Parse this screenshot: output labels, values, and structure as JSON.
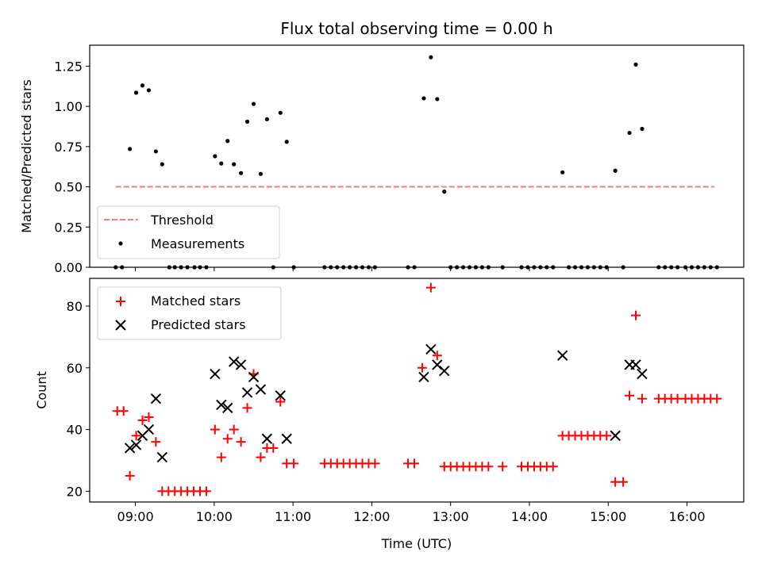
{
  "chart_data": [
    {
      "type": "scatter",
      "title": "Flux total observing time = 0.00 h",
      "xlabel": "",
      "ylabel": "Matched/Predicted stars",
      "xlim": [
        8.42,
        16.72
      ],
      "ylim": [
        0.0,
        1.38
      ],
      "yticks": [
        "0.00",
        "0.25",
        "0.50",
        "0.75",
        "1.00",
        "1.25"
      ],
      "grid": false,
      "legend_position": "lower-left",
      "series": [
        {
          "name": "Threshold",
          "style": "dashed-line",
          "color": "#f08080",
          "x": [
            8.75,
            16.35
          ],
          "y": [
            0.5,
            0.5
          ]
        },
        {
          "name": "Measurements",
          "style": "dot",
          "color": "#000000",
          "points": [
            [
              8.75,
              0.0
            ],
            [
              8.83,
              0.0
            ],
            [
              8.93,
              0.735
            ],
            [
              9.01,
              1.085
            ],
            [
              9.09,
              1.13
            ],
            [
              9.17,
              1.1
            ],
            [
              9.26,
              0.72
            ],
            [
              9.34,
              0.64
            ],
            [
              9.43,
              0.0
            ],
            [
              9.5,
              0.0
            ],
            [
              9.58,
              0.0
            ],
            [
              9.66,
              0.0
            ],
            [
              9.75,
              0.0
            ],
            [
              9.82,
              0.0
            ],
            [
              9.9,
              0.0
            ],
            [
              10.01,
              0.69
            ],
            [
              10.09,
              0.645
            ],
            [
              10.17,
              0.785
            ],
            [
              10.25,
              0.64
            ],
            [
              10.34,
              0.585
            ],
            [
              10.42,
              0.905
            ],
            [
              10.5,
              1.015
            ],
            [
              10.59,
              0.58
            ],
            [
              10.67,
              0.92
            ],
            [
              10.75,
              0.0
            ],
            [
              10.84,
              0.96
            ],
            [
              10.92,
              0.78
            ],
            [
              11.01,
              0.0
            ],
            [
              11.4,
              0.0
            ],
            [
              11.48,
              0.0
            ],
            [
              11.56,
              0.0
            ],
            [
              11.64,
              0.0
            ],
            [
              11.72,
              0.0
            ],
            [
              11.8,
              0.0
            ],
            [
              11.88,
              0.0
            ],
            [
              11.96,
              0.0
            ],
            [
              12.04,
              0.0
            ],
            [
              12.46,
              0.0
            ],
            [
              12.54,
              0.0
            ],
            [
              12.66,
              1.05
            ],
            [
              12.75,
              1.305
            ],
            [
              12.83,
              1.045
            ],
            [
              12.92,
              0.47
            ],
            [
              13.0,
              0.0
            ],
            [
              13.08,
              0.0
            ],
            [
              13.16,
              0.0
            ],
            [
              13.24,
              0.0
            ],
            [
              13.32,
              0.0
            ],
            [
              13.4,
              0.0
            ],
            [
              13.48,
              0.0
            ],
            [
              13.66,
              0.0
            ],
            [
              13.9,
              0.0
            ],
            [
              13.98,
              0.0
            ],
            [
              14.06,
              0.0
            ],
            [
              14.14,
              0.0
            ],
            [
              14.22,
              0.0
            ],
            [
              14.3,
              0.0
            ],
            [
              14.42,
              0.59
            ],
            [
              14.5,
              0.0
            ],
            [
              14.58,
              0.0
            ],
            [
              14.66,
              0.0
            ],
            [
              14.74,
              0.0
            ],
            [
              14.82,
              0.0
            ],
            [
              14.9,
              0.0
            ],
            [
              14.98,
              0.0
            ],
            [
              15.09,
              0.6
            ],
            [
              15.19,
              0.0
            ],
            [
              15.27,
              0.835
            ],
            [
              15.35,
              1.26
            ],
            [
              15.43,
              0.86
            ],
            [
              15.64,
              0.0
            ],
            [
              15.72,
              0.0
            ],
            [
              15.8,
              0.0
            ],
            [
              15.88,
              0.0
            ],
            [
              15.98,
              0.0
            ],
            [
              16.06,
              0.0
            ],
            [
              16.14,
              0.0
            ],
            [
              16.22,
              0.0
            ],
            [
              16.3,
              0.0
            ],
            [
              16.38,
              0.0
            ]
          ]
        }
      ]
    },
    {
      "type": "scatter",
      "title": "",
      "xlabel": "Time (UTC)",
      "ylabel": "Count",
      "xlim": [
        8.42,
        16.72
      ],
      "ylim": [
        16.5,
        89.0
      ],
      "xticks": [
        {
          "value": 9,
          "label": "09:00"
        },
        {
          "value": 10,
          "label": "10:00"
        },
        {
          "value": 11,
          "label": "11:00"
        },
        {
          "value": 12,
          "label": "12:00"
        },
        {
          "value": 13,
          "label": "13:00"
        },
        {
          "value": 14,
          "label": "14:00"
        },
        {
          "value": 15,
          "label": "15:00"
        },
        {
          "value": 16,
          "label": "16:00"
        }
      ],
      "yticks": [
        "20",
        "40",
        "60",
        "80"
      ],
      "grid": false,
      "legend_position": "top-left",
      "series": [
        {
          "name": "Matched stars",
          "marker": "plus",
          "color": "#ff0000",
          "points": [
            [
              8.77,
              46
            ],
            [
              8.85,
              46
            ],
            [
              8.93,
              25
            ],
            [
              9.01,
              38
            ],
            [
              9.09,
              43
            ],
            [
              9.17,
              44
            ],
            [
              9.26,
              36
            ],
            [
              9.34,
              20
            ],
            [
              9.42,
              20
            ],
            [
              9.5,
              20
            ],
            [
              9.58,
              20
            ],
            [
              9.66,
              20
            ],
            [
              9.74,
              20
            ],
            [
              9.82,
              20
            ],
            [
              9.9,
              20
            ],
            [
              10.01,
              40
            ],
            [
              10.09,
              31
            ],
            [
              10.17,
              37
            ],
            [
              10.25,
              40
            ],
            [
              10.34,
              36
            ],
            [
              10.42,
              47
            ],
            [
              10.5,
              58
            ],
            [
              10.59,
              31
            ],
            [
              10.67,
              34
            ],
            [
              10.75,
              34
            ],
            [
              10.84,
              49
            ],
            [
              10.92,
              29
            ],
            [
              11.01,
              29
            ],
            [
              11.4,
              29
            ],
            [
              11.48,
              29
            ],
            [
              11.56,
              29
            ],
            [
              11.64,
              29
            ],
            [
              11.72,
              29
            ],
            [
              11.8,
              29
            ],
            [
              11.88,
              29
            ],
            [
              11.96,
              29
            ],
            [
              12.04,
              29
            ],
            [
              12.46,
              29
            ],
            [
              12.54,
              29
            ],
            [
              12.64,
              60
            ],
            [
              12.75,
              86
            ],
            [
              12.83,
              64
            ],
            [
              12.92,
              28
            ],
            [
              13.0,
              28
            ],
            [
              13.08,
              28
            ],
            [
              13.16,
              28
            ],
            [
              13.24,
              28
            ],
            [
              13.32,
              28
            ],
            [
              13.4,
              28
            ],
            [
              13.48,
              28
            ],
            [
              13.66,
              28
            ],
            [
              13.9,
              28
            ],
            [
              13.98,
              28
            ],
            [
              14.06,
              28
            ],
            [
              14.14,
              28
            ],
            [
              14.22,
              28
            ],
            [
              14.3,
              28
            ],
            [
              14.42,
              38
            ],
            [
              14.5,
              38
            ],
            [
              14.58,
              38
            ],
            [
              14.66,
              38
            ],
            [
              14.74,
              38
            ],
            [
              14.82,
              38
            ],
            [
              14.9,
              38
            ],
            [
              14.98,
              38
            ],
            [
              15.09,
              23
            ],
            [
              15.19,
              23
            ],
            [
              15.27,
              51
            ],
            [
              15.35,
              77
            ],
            [
              15.43,
              50
            ],
            [
              15.64,
              50
            ],
            [
              15.72,
              50
            ],
            [
              15.8,
              50
            ],
            [
              15.88,
              50
            ],
            [
              15.98,
              50
            ],
            [
              16.06,
              50
            ],
            [
              16.14,
              50
            ],
            [
              16.22,
              50
            ],
            [
              16.3,
              50
            ],
            [
              16.38,
              50
            ]
          ]
        },
        {
          "name": "Predicted stars",
          "marker": "x",
          "color": "#000000",
          "points": [
            [
              8.93,
              34
            ],
            [
              9.01,
              35
            ],
            [
              9.09,
              38
            ],
            [
              9.17,
              40
            ],
            [
              9.26,
              50
            ],
            [
              9.34,
              31
            ],
            [
              10.01,
              58
            ],
            [
              10.09,
              48
            ],
            [
              10.17,
              47
            ],
            [
              10.25,
              62
            ],
            [
              10.34,
              61
            ],
            [
              10.42,
              52
            ],
            [
              10.5,
              57
            ],
            [
              10.59,
              53
            ],
            [
              10.67,
              37
            ],
            [
              10.84,
              51
            ],
            [
              10.92,
              37
            ],
            [
              12.66,
              57
            ],
            [
              12.75,
              66
            ],
            [
              12.83,
              61
            ],
            [
              12.92,
              59
            ],
            [
              14.42,
              64
            ],
            [
              15.09,
              38
            ],
            [
              15.27,
              61
            ],
            [
              15.35,
              61
            ],
            [
              15.43,
              58
            ]
          ]
        }
      ]
    }
  ]
}
